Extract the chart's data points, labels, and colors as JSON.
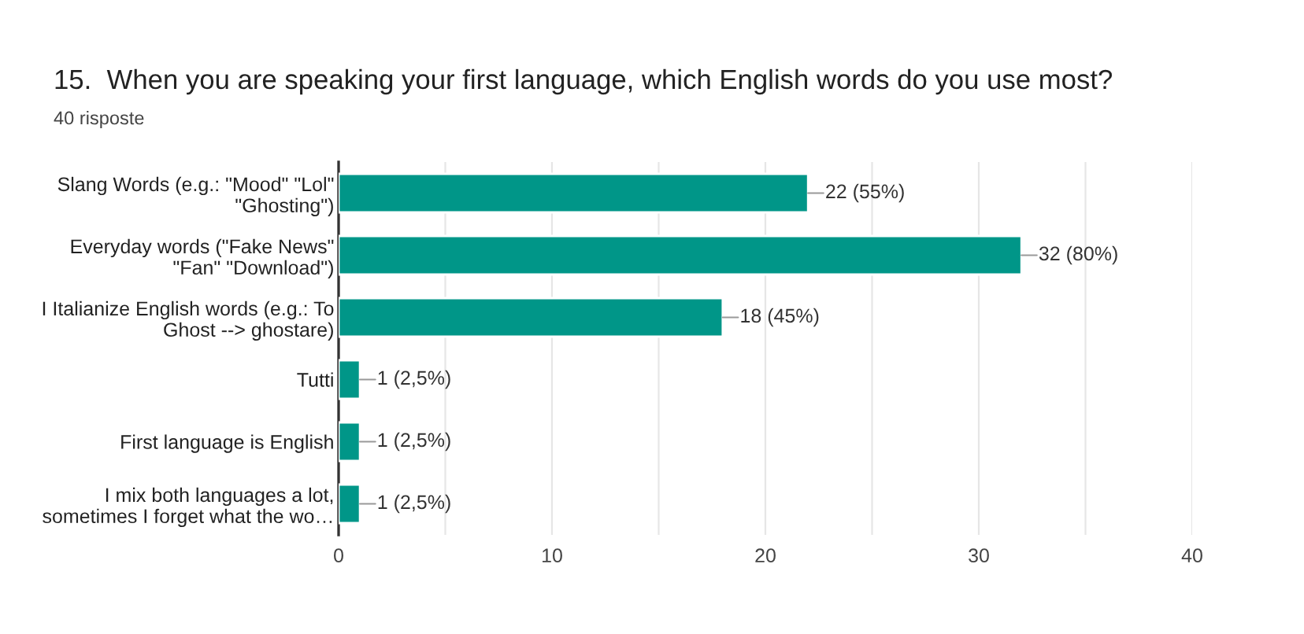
{
  "chart_data": {
    "type": "bar",
    "orientation": "horizontal",
    "title": "15.  When you are speaking your first language, which English words do you use most?",
    "subtitle": "40 risposte",
    "categories": [
      "Slang Words (e.g.: \"Mood\" \"Lol\"\n\"Ghosting\")",
      "Everyday words (\"Fake News\"\n\"Fan\" \"Download\")",
      "I Italianize English words (e.g.: To\nGhost --> ghostare)",
      "Tutti",
      "First language is English",
      "I mix both languages a lot,\nsometimes I forget what the wo…"
    ],
    "values": [
      22,
      32,
      18,
      1,
      1,
      1
    ],
    "value_labels": [
      "22 (55%)",
      "32 (80%)",
      "18 (45%)",
      "1 (2,5%)",
      "1 (2,5%)",
      "1 (2,5%)"
    ],
    "color": "#009688",
    "xlim": [
      0,
      40
    ],
    "xticks": [
      0,
      {
        "value": 5,
        "label": null
      },
      10,
      {
        "value": 15,
        "label": null
      },
      20,
      {
        "value": 25,
        "label": null
      },
      30,
      {
        "value": 35,
        "label": null
      },
      40
    ],
    "grid": "x",
    "legend": false
  }
}
